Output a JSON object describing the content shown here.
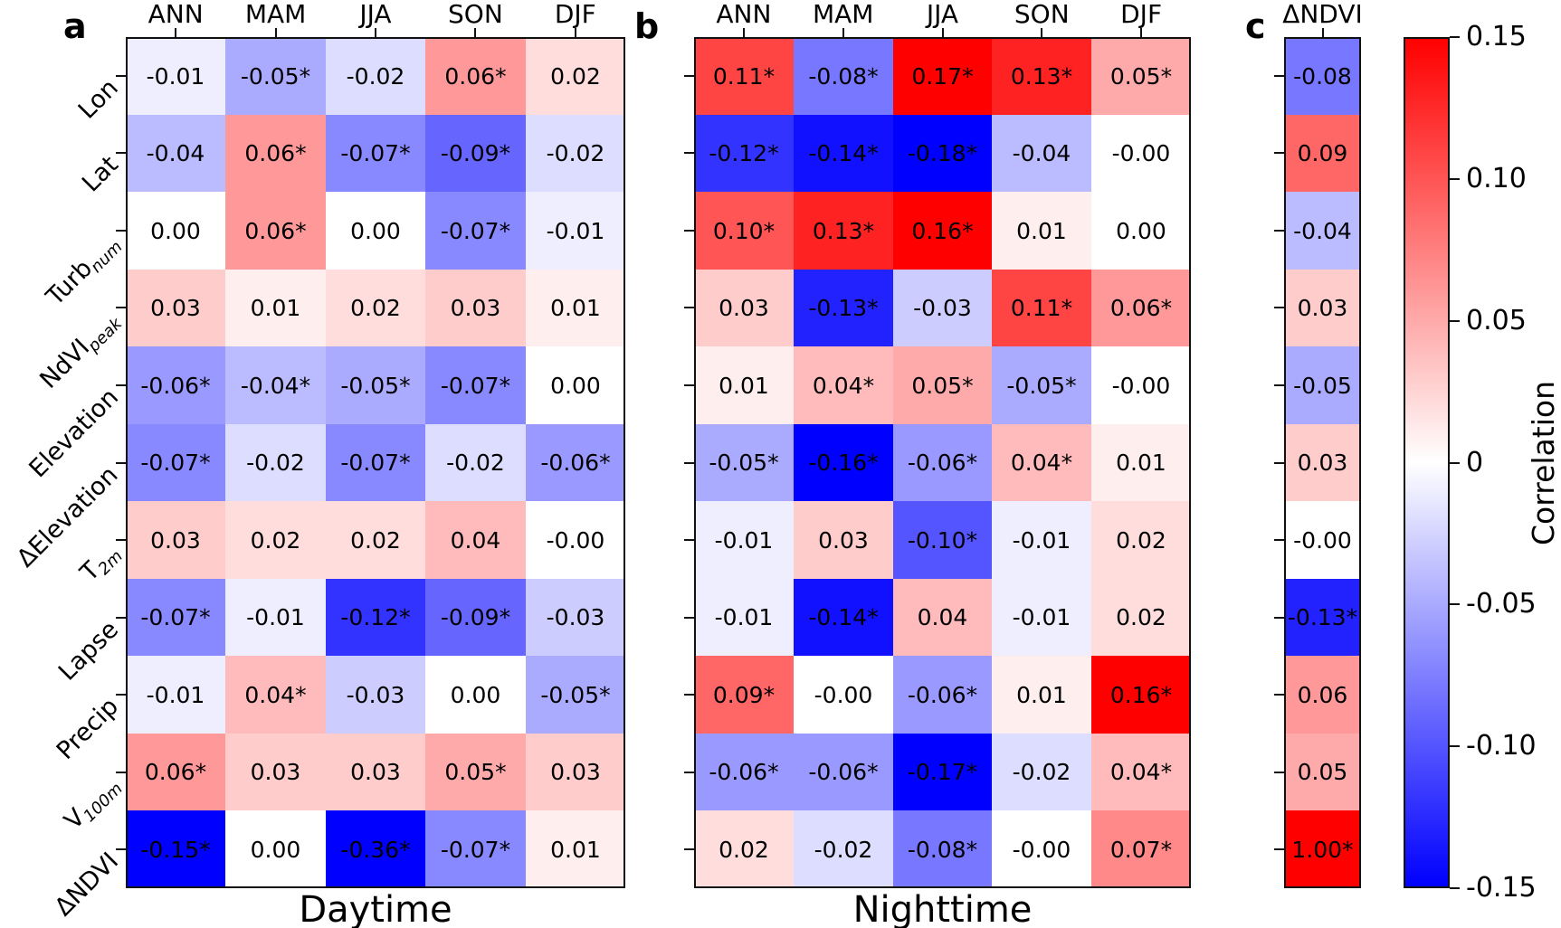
{
  "chart_data": {
    "type": "heatmap",
    "colormap": {
      "low": "#0000ff",
      "mid": "#ffffff",
      "high": "#ff0000"
    },
    "color_range": [
      -0.15,
      0.15
    ],
    "panels": [
      {
        "id": "a",
        "letter": "a",
        "title": "Daytime",
        "columns": [
          "ANN",
          "MAM",
          "JJA",
          "SON",
          "DJF"
        ],
        "rows": [
          {
            "main": "Lon",
            "sub": ""
          },
          {
            "main": "Lat",
            "sub": ""
          },
          {
            "main": "Turb",
            "sub": "num"
          },
          {
            "main": "NdVI",
            "sub": "peak"
          },
          {
            "main": "Elevation",
            "sub": ""
          },
          {
            "main": "ΔElevation",
            "sub": ""
          },
          {
            "main": "T",
            "sub": "2m"
          },
          {
            "main": "Lapse",
            "sub": ""
          },
          {
            "main": "Precip",
            "sub": ""
          },
          {
            "main": "V",
            "sub": "100m"
          },
          {
            "main": "ΔNDVI",
            "sub": ""
          }
        ],
        "cell_labels": [
          [
            "-0.01",
            "-0.05*",
            "-0.02",
            "0.06*",
            "0.02"
          ],
          [
            "-0.04",
            "0.06*",
            "-0.07*",
            "-0.09*",
            "-0.02"
          ],
          [
            "0.00",
            "0.06*",
            "0.00",
            "-0.07*",
            "-0.01"
          ],
          [
            "0.03",
            "0.01",
            "0.02",
            "0.03",
            "0.01"
          ],
          [
            "-0.06*",
            "-0.04*",
            "-0.05*",
            "-0.07*",
            "0.00"
          ],
          [
            "-0.07*",
            "-0.02",
            "-0.07*",
            "-0.02",
            "-0.06*"
          ],
          [
            "0.03",
            "0.02",
            "0.02",
            "0.04",
            "-0.00"
          ],
          [
            "-0.07*",
            "-0.01",
            "-0.12*",
            "-0.09*",
            "-0.03"
          ],
          [
            "-0.01",
            "0.04*",
            "-0.03",
            "0.00",
            "-0.05*"
          ],
          [
            "0.06*",
            "0.03",
            "0.03",
            "0.05*",
            "0.03"
          ],
          [
            "-0.15*",
            "0.00",
            "-0.36*",
            "-0.07*",
            "0.01"
          ]
        ],
        "values": [
          [
            -0.01,
            -0.05,
            -0.02,
            0.06,
            0.02
          ],
          [
            -0.04,
            0.06,
            -0.07,
            -0.09,
            -0.02
          ],
          [
            0.0,
            0.06,
            0.0,
            -0.07,
            -0.01
          ],
          [
            0.03,
            0.01,
            0.02,
            0.03,
            0.01
          ],
          [
            -0.06,
            -0.04,
            -0.05,
            -0.07,
            0.0
          ],
          [
            -0.07,
            -0.02,
            -0.07,
            -0.02,
            -0.06
          ],
          [
            0.03,
            0.02,
            0.02,
            0.04,
            -0.0
          ],
          [
            -0.07,
            -0.01,
            -0.12,
            -0.09,
            -0.03
          ],
          [
            -0.01,
            0.04,
            -0.03,
            0.0,
            -0.05
          ],
          [
            0.06,
            0.03,
            0.03,
            0.05,
            0.03
          ],
          [
            -0.15,
            0.0,
            -0.36,
            -0.07,
            0.01
          ]
        ]
      },
      {
        "id": "b",
        "letter": "b",
        "title": "Nighttime",
        "columns": [
          "ANN",
          "MAM",
          "JJA",
          "SON",
          "DJF"
        ],
        "cell_labels": [
          [
            "0.11*",
            "-0.08*",
            "0.17*",
            "0.13*",
            "0.05*"
          ],
          [
            "-0.12*",
            "-0.14*",
            "-0.18*",
            "-0.04",
            "-0.00"
          ],
          [
            "0.10*",
            "0.13*",
            "0.16*",
            "0.01",
            "0.00"
          ],
          [
            "0.03",
            "-0.13*",
            "-0.03",
            "0.11*",
            "0.06*"
          ],
          [
            "0.01",
            "0.04*",
            "0.05*",
            "-0.05*",
            "-0.00"
          ],
          [
            "-0.05*",
            "-0.16*",
            "-0.06*",
            "0.04*",
            "0.01"
          ],
          [
            "-0.01",
            "0.03",
            "-0.10*",
            "-0.01",
            "0.02"
          ],
          [
            "-0.01",
            "-0.14*",
            "0.04",
            "-0.01",
            "0.02"
          ],
          [
            "0.09*",
            "-0.00",
            "-0.06*",
            "0.01",
            "0.16*"
          ],
          [
            "-0.06*",
            "-0.06*",
            "-0.17*",
            "-0.02",
            "0.04*"
          ],
          [
            "0.02",
            "-0.02",
            "-0.08*",
            "-0.00",
            "0.07*"
          ]
        ],
        "values": [
          [
            0.11,
            -0.08,
            0.17,
            0.13,
            0.05
          ],
          [
            -0.12,
            -0.14,
            -0.18,
            -0.04,
            -0.0
          ],
          [
            0.1,
            0.13,
            0.16,
            0.01,
            0.0
          ],
          [
            0.03,
            -0.13,
            -0.03,
            0.11,
            0.06
          ],
          [
            0.01,
            0.04,
            0.05,
            -0.05,
            -0.0
          ],
          [
            -0.05,
            -0.16,
            -0.06,
            0.04,
            0.01
          ],
          [
            -0.01,
            0.03,
            -0.1,
            -0.01,
            0.02
          ],
          [
            -0.01,
            -0.14,
            0.04,
            -0.01,
            0.02
          ],
          [
            0.09,
            -0.0,
            -0.06,
            0.01,
            0.16
          ],
          [
            -0.06,
            -0.06,
            -0.17,
            -0.02,
            0.04
          ],
          [
            0.02,
            -0.02,
            -0.08,
            -0.0,
            0.07
          ]
        ]
      },
      {
        "id": "c",
        "letter": "c",
        "title": "",
        "columns": [
          "ΔNDVI"
        ],
        "cell_labels": [
          [
            "-0.08"
          ],
          [
            "0.09"
          ],
          [
            "-0.04"
          ],
          [
            "0.03"
          ],
          [
            "-0.05"
          ],
          [
            "0.03"
          ],
          [
            "-0.00"
          ],
          [
            "-0.13*"
          ],
          [
            "0.06"
          ],
          [
            "0.05"
          ],
          [
            "1.00*"
          ]
        ],
        "values": [
          [
            -0.08
          ],
          [
            0.09
          ],
          [
            -0.04
          ],
          [
            0.03
          ],
          [
            -0.05
          ],
          [
            0.03
          ],
          [
            -0.0
          ],
          [
            -0.13
          ],
          [
            0.06
          ],
          [
            0.05
          ],
          [
            1.0
          ]
        ]
      }
    ],
    "colorbar": {
      "label": "Correlation",
      "tick_labels": [
        "0.15",
        "0.10",
        "0.05",
        "0",
        "-0.05",
        "-0.10",
        "-0.15"
      ],
      "range": [
        -0.15,
        0.15
      ]
    }
  }
}
